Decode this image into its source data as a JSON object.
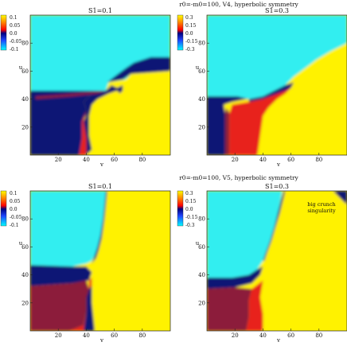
{
  "figure": {
    "rows": [
      {
        "title": "r0=-m0=100, V4, hyperbolic symmetry",
        "panels": [
          {
            "title": "S1=0.1",
            "xlabel": "v",
            "ylabel": "u",
            "colorbar": [
              "0.1",
              "0.05",
              "0.0",
              "-0.05",
              "-0.1"
            ],
            "pattern": "v4a"
          },
          {
            "title": "S1=0.3",
            "xlabel": "v",
            "ylabel": "u",
            "colorbar": [
              "0.3",
              "0.15",
              "0.0",
              "-0.15",
              "-0.3"
            ],
            "pattern": "v4b"
          }
        ]
      },
      {
        "title": "r0=-m0=100, V5, hyperbolic symmetry",
        "panels": [
          {
            "title": "S1=0.1",
            "xlabel": "v",
            "ylabel": "u",
            "colorbar": [
              "0.1",
              "0.05",
              "0.0",
              "-0.05",
              "-0.1"
            ],
            "pattern": "v5a"
          },
          {
            "title": "S1=0.3",
            "xlabel": "v",
            "ylabel": "u",
            "colorbar": [
              "0.3",
              "0.15",
              "0.0",
              "-0.15",
              "-0.3"
            ],
            "pattern": "v5b",
            "annotation": [
              "big crunch",
              "singularity"
            ]
          }
        ]
      }
    ]
  },
  "chart_data": {
    "type": "heatmap",
    "x_range": [
      0,
      100
    ],
    "y_range": [
      0,
      100
    ],
    "x_ticks": [
      20,
      40,
      60,
      80
    ],
    "y_ticks": [
      20,
      40,
      60,
      80
    ],
    "colormap": [
      "#00e8ff",
      "#1e32ff",
      "#000a6e",
      "#ff2020",
      "#ffff00"
    ],
    "colors": {
      "cyan": "#33eef0",
      "dark_blue": "#0a1474",
      "yellow": "#fff200",
      "red": "#e8241c",
      "dark_red": "#8c1a3a"
    }
  }
}
